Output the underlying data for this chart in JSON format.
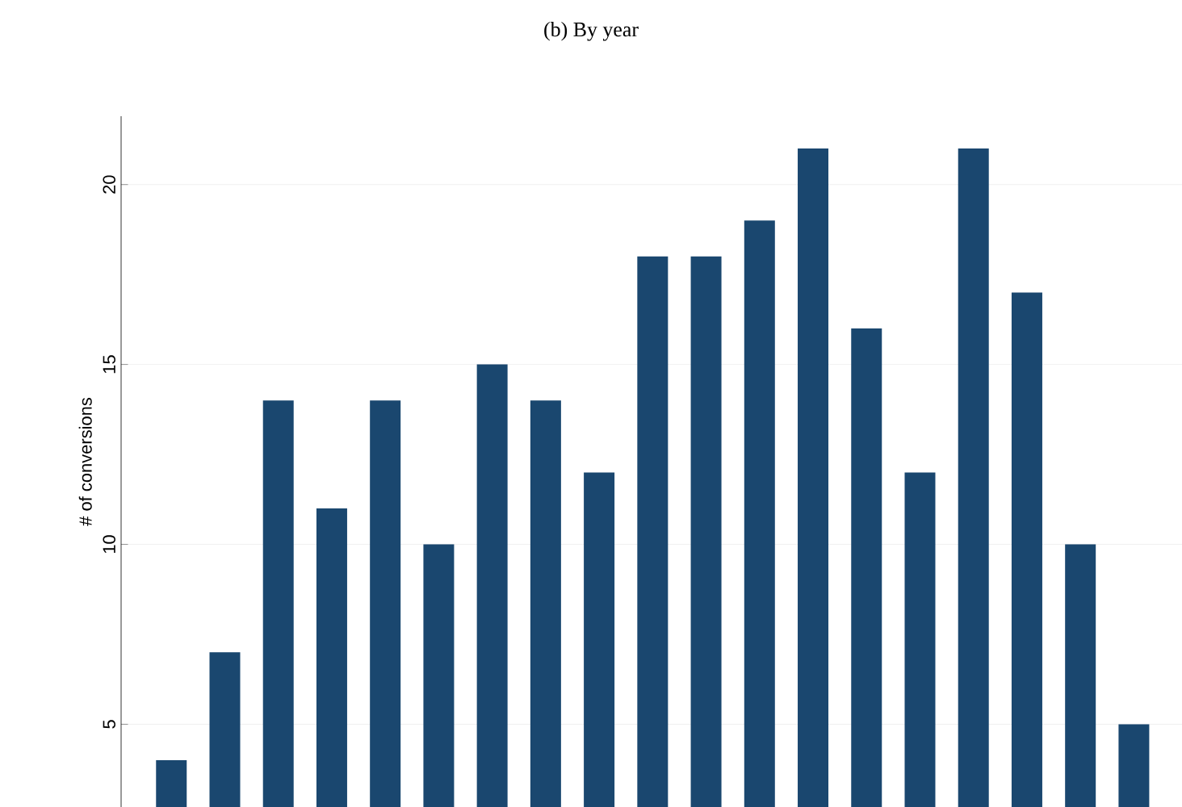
{
  "chart_data": {
    "type": "bar",
    "title": "(b) By year",
    "ylabel": "# of conversions",
    "categories": [
      null,
      null,
      null,
      null,
      null,
      null,
      null,
      null,
      null,
      null,
      null,
      null,
      null,
      null,
      null,
      null,
      null,
      null,
      null
    ],
    "values": [
      4,
      7,
      14,
      11,
      14,
      10,
      15,
      14,
      12,
      18,
      18,
      19,
      21,
      16,
      12,
      21,
      17,
      10,
      5
    ],
    "color": "#1a476f",
    "ylim": [
      2.7,
      21.9
    ],
    "yticks": [
      5,
      10,
      15,
      20
    ],
    "grid": "y"
  }
}
